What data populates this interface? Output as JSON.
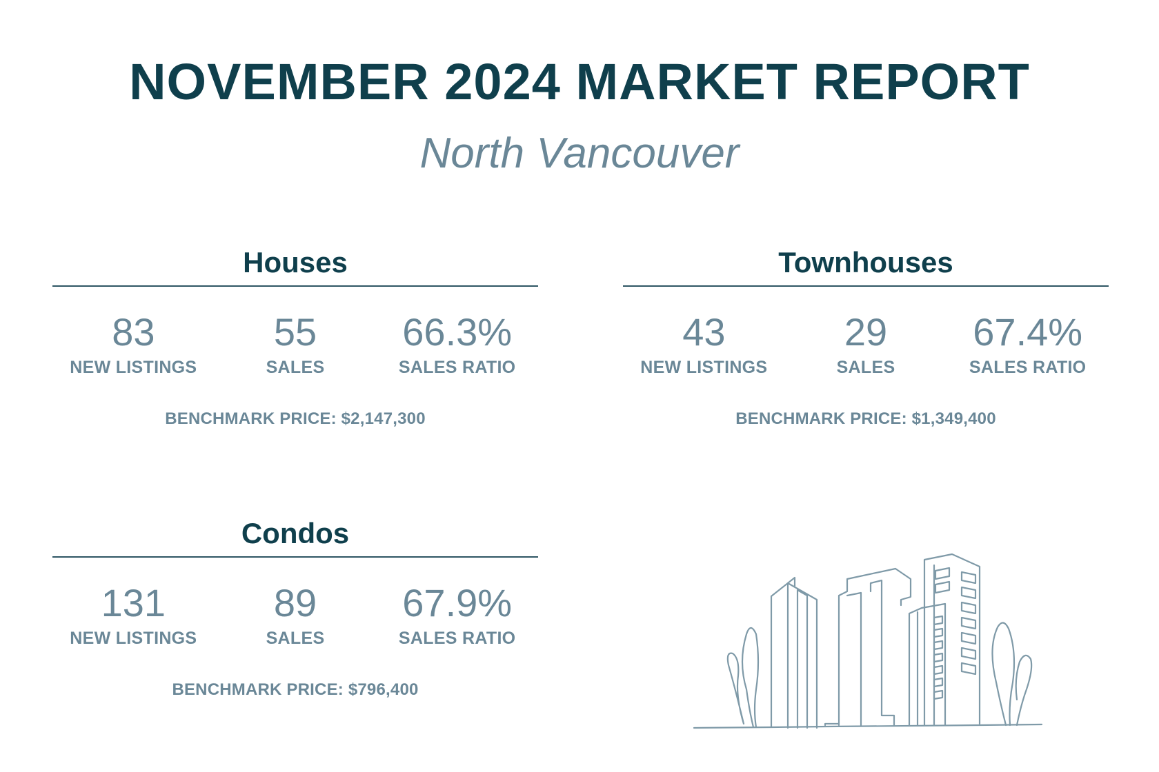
{
  "title": "NOVEMBER 2024 MARKET REPORT",
  "subtitle": "North Vancouver",
  "sections": {
    "houses": {
      "heading": "Houses",
      "new_listings": "83",
      "new_listings_label": "NEW LISTINGS",
      "sales": "55",
      "sales_label": "SALES",
      "sales_ratio": "66.3%",
      "sales_ratio_label": "SALES RATIO",
      "benchmark": "BENCHMARK PRICE: $2,147,300"
    },
    "townhouses": {
      "heading": "Townhouses",
      "new_listings": "43",
      "new_listings_label": "NEW LISTINGS",
      "sales": "29",
      "sales_label": "SALES",
      "sales_ratio": "67.4%",
      "sales_ratio_label": "SALES RATIO",
      "benchmark": "BENCHMARK PRICE: $1,349,400"
    },
    "condos": {
      "heading": "Condos",
      "new_listings": "131",
      "new_listings_label": "NEW LISTINGS",
      "sales": "89",
      "sales_label": "SALES",
      "sales_ratio": "67.9%",
      "sales_ratio_label": "SALES RATIO",
      "benchmark": "BENCHMARK PRICE: $796,400"
    }
  },
  "colors": {
    "heading": "#0f3f4c",
    "muted": "#6a8797",
    "rule": "#2d5563",
    "illustration_stroke": "#7f9aa8"
  },
  "illustration": {
    "icon": "city-skyline-line-art-icon"
  }
}
